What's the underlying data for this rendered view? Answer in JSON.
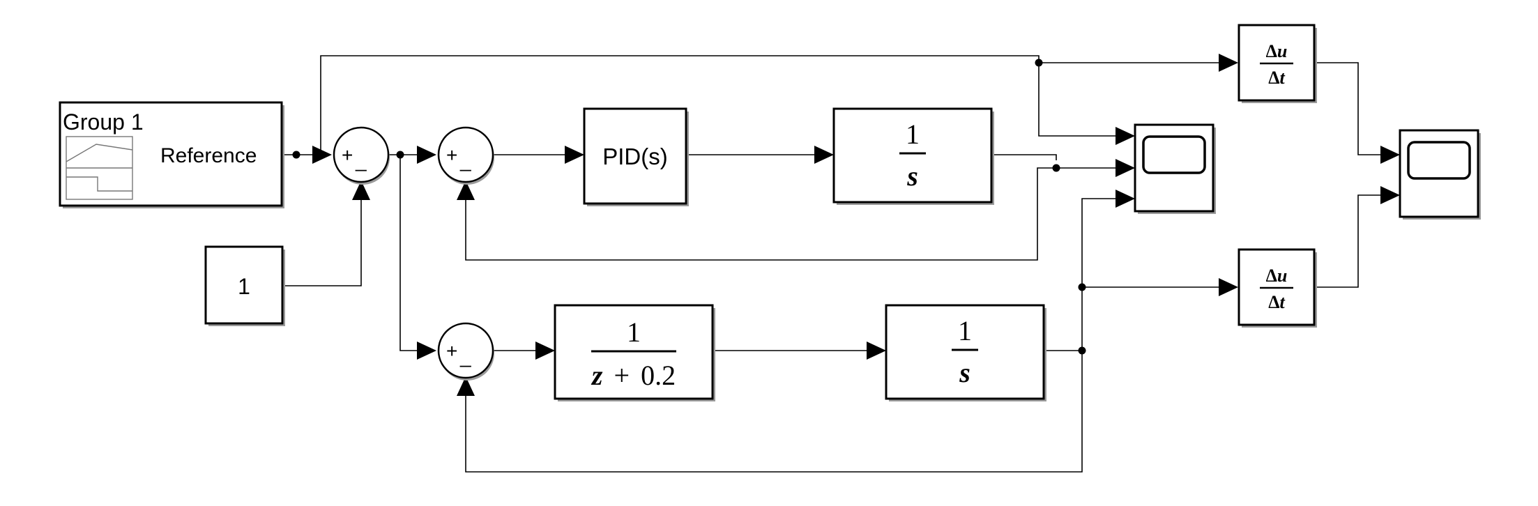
{
  "blocks": {
    "signal_builder": {
      "group_label": "Group 1",
      "output_label": "Reference"
    },
    "constant": {
      "value": "1"
    },
    "sum_signs": {
      "plus": "+",
      "minus": "_"
    },
    "pid": {
      "label": "PID(s)"
    },
    "integrator_top": {
      "num": "1",
      "den": "s"
    },
    "discrete_tf": {
      "num": "1",
      "den_var": "z",
      "den_op": "+",
      "den_const": "0.2"
    },
    "integrator_bottom": {
      "num": "1",
      "den": "s"
    },
    "derivative": {
      "num_delta": "Δ",
      "num_var": "u",
      "den_delta": "Δ",
      "den_var": "t"
    }
  },
  "icons": [
    "scope-icon",
    "signal-builder-icon"
  ]
}
